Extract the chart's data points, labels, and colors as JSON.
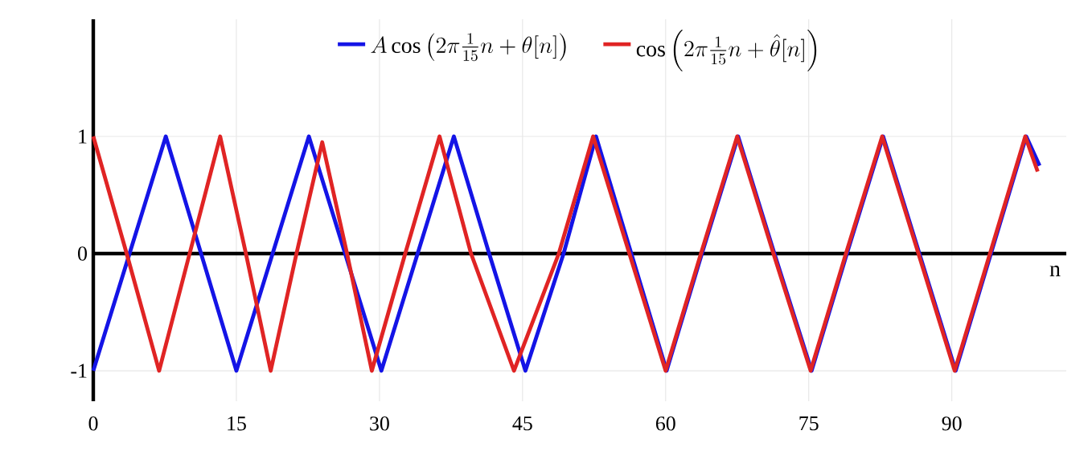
{
  "chart_data": {
    "type": "line",
    "xlabel": "n",
    "xlim": [
      0,
      102
    ],
    "ylim": [
      -1.26,
      2.0
    ],
    "xticks": [
      0,
      15,
      30,
      45,
      60,
      75,
      90
    ],
    "yticks": [
      -1,
      0,
      1
    ],
    "grid": true,
    "legend": "top",
    "series": [
      {
        "name": "A\\cos\\left(2\\pi\\tfrac{1}{15}n+\\theta[n]\\right)",
        "color": "#1414e6",
        "x": [
          0,
          3.8,
          7.6,
          11.3,
          15,
          18.8,
          22.6,
          26.4,
          30.2,
          34,
          37.8,
          41.5,
          45.3,
          49.3,
          52.7,
          56.4,
          60.1,
          63.8,
          67.6,
          71.4,
          75.3,
          79,
          82.8,
          86.6,
          90.4,
          94.1,
          97.8,
          99.2
        ],
        "values": [
          -1,
          0,
          1,
          0,
          -1,
          0,
          1,
          0,
          -1,
          0,
          1,
          0,
          -1,
          0,
          1,
          0,
          -1,
          0,
          1,
          0,
          -1,
          0,
          1,
          0,
          -1,
          0,
          1,
          0.75
        ]
      },
      {
        "name": "\\cos\\left(2\\pi\\tfrac{1}{15}n+\\hat{\\theta}[n]\\right)",
        "color": "#e02424",
        "x": [
          0,
          3.5,
          6.9,
          10.1,
          13.3,
          16,
          18.6,
          21.3,
          24,
          26.6,
          29.2,
          32.7,
          36.3,
          39.6,
          44.1,
          48.8,
          52.4,
          56.2,
          60,
          63.7,
          67.5,
          71.3,
          75.2,
          78.9,
          82.7,
          86.5,
          90.3,
          94,
          97.7,
          99
        ],
        "values": [
          1,
          0,
          -1,
          0,
          1,
          0,
          -1,
          0,
          0.95,
          0,
          -1,
          0,
          1,
          0,
          -1,
          0,
          1,
          0,
          -1,
          0,
          1,
          0,
          -1,
          0,
          1,
          0,
          -1,
          0,
          1,
          0.7
        ]
      }
    ]
  }
}
